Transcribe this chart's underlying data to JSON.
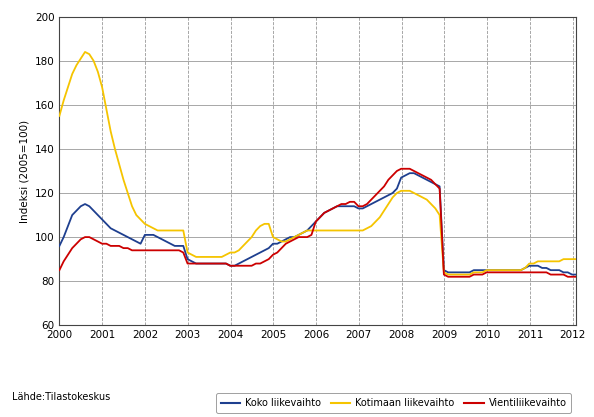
{
  "title": "",
  "ylabel": "Indeksi (2005=100)",
  "source_label": "Lähde:Tilastokeskus",
  "ylim": [
    60,
    200
  ],
  "yticks": [
    60,
    80,
    100,
    120,
    140,
    160,
    180,
    200
  ],
  "xlim": [
    2000.0,
    2012.08
  ],
  "xtick_years": [
    2000,
    2001,
    2002,
    2003,
    2004,
    2005,
    2006,
    2007,
    2008,
    2009,
    2010,
    2011,
    2012
  ],
  "legend_labels": [
    "Koko liikevaihto",
    "Kotimaan liikevaihto",
    "Vientiliikevaihto"
  ],
  "colors": [
    "#1e3f8f",
    "#f5c400",
    "#cc0000"
  ],
  "bg_color": "#ffffff",
  "grid_h_color": "#999999",
  "grid_v_color": "#999999",
  "koko_y": [
    96,
    100,
    105,
    110,
    112,
    114,
    115,
    114,
    112,
    110,
    108,
    106,
    104,
    103,
    102,
    101,
    100,
    99,
    98,
    97,
    101,
    101,
    101,
    100,
    99,
    98,
    97,
    96,
    96,
    96,
    90,
    89,
    88,
    88,
    88,
    88,
    88,
    88,
    88,
    88,
    87,
    87,
    88,
    89,
    90,
    91,
    92,
    93,
    94,
    95,
    97,
    97,
    98,
    99,
    100,
    100,
    101,
    102,
    103,
    105,
    107,
    109,
    111,
    112,
    113,
    114,
    114,
    114,
    114,
    114,
    113,
    113,
    114,
    115,
    116,
    117,
    118,
    119,
    120,
    122,
    127,
    128,
    129,
    129,
    128,
    127,
    126,
    125,
    124,
    123,
    85,
    84,
    84,
    84,
    84,
    84,
    84,
    85,
    85,
    85,
    85,
    85,
    85,
    85,
    85,
    85,
    85,
    85,
    85,
    86,
    87,
    87,
    87,
    86,
    86,
    85,
    85,
    85,
    84,
    84,
    83,
    83
  ],
  "kotimaan_y": [
    155,
    162,
    168,
    174,
    178,
    181,
    184,
    183,
    180,
    175,
    168,
    158,
    148,
    140,
    133,
    126,
    120,
    114,
    110,
    108,
    106,
    105,
    104,
    103,
    103,
    103,
    103,
    103,
    103,
    103,
    93,
    92,
    91,
    91,
    91,
    91,
    91,
    91,
    91,
    92,
    93,
    93,
    94,
    96,
    98,
    100,
    103,
    105,
    106,
    106,
    100,
    99,
    98,
    98,
    99,
    100,
    101,
    102,
    103,
    103,
    103,
    103,
    103,
    103,
    103,
    103,
    103,
    103,
    103,
    103,
    103,
    103,
    104,
    105,
    107,
    109,
    112,
    115,
    118,
    120,
    121,
    121,
    121,
    120,
    119,
    118,
    117,
    115,
    113,
    110,
    84,
    83,
    83,
    83,
    83,
    83,
    83,
    84,
    84,
    84,
    85,
    85,
    85,
    85,
    85,
    85,
    85,
    85,
    85,
    86,
    88,
    88,
    89,
    89,
    89,
    89,
    89,
    89,
    90,
    90,
    90,
    90
  ],
  "vienti_y": [
    85,
    89,
    92,
    95,
    97,
    99,
    100,
    100,
    99,
    98,
    97,
    97,
    96,
    96,
    96,
    95,
    95,
    94,
    94,
    94,
    94,
    94,
    94,
    94,
    94,
    94,
    94,
    94,
    94,
    93,
    88,
    88,
    88,
    88,
    88,
    88,
    88,
    88,
    88,
    88,
    87,
    87,
    87,
    87,
    87,
    87,
    88,
    88,
    89,
    90,
    92,
    93,
    95,
    97,
    98,
    99,
    100,
    100,
    100,
    101,
    107,
    109,
    111,
    112,
    113,
    114,
    115,
    115,
    116,
    116,
    114,
    114,
    115,
    117,
    119,
    121,
    123,
    126,
    128,
    130,
    131,
    131,
    131,
    130,
    129,
    128,
    127,
    126,
    124,
    122,
    83,
    82,
    82,
    82,
    82,
    82,
    82,
    83,
    83,
    83,
    84,
    84,
    84,
    84,
    84,
    84,
    84,
    84,
    84,
    84,
    84,
    84,
    84,
    84,
    84,
    83,
    83,
    83,
    83,
    82,
    82,
    82
  ]
}
